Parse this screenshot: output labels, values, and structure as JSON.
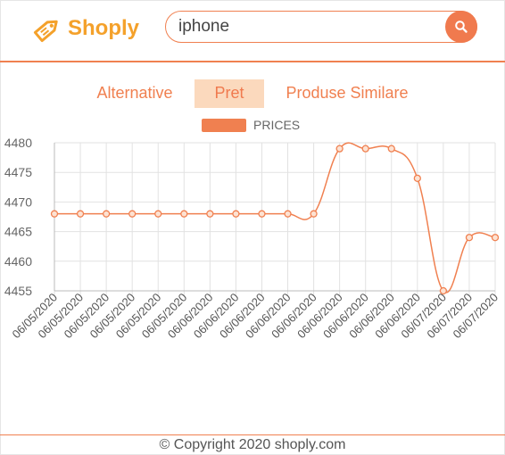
{
  "app": {
    "brand": "Shoply",
    "brand_color": "#f4a12b",
    "accent_color": "#f08050"
  },
  "search": {
    "value": "iphone",
    "button_icon": "search-icon"
  },
  "tabs": [
    {
      "label": "Alternative",
      "active": false
    },
    {
      "label": "Pret",
      "active": true
    },
    {
      "label": "Produse Similare",
      "active": false
    }
  ],
  "chart_data": {
    "type": "line",
    "title": "",
    "legend": [
      "PRICES"
    ],
    "legend_position": "top",
    "grid": true,
    "ylim": [
      4455,
      4480
    ],
    "yticks": [
      4455,
      4460,
      4465,
      4470,
      4475,
      4480
    ],
    "categories": [
      "06/05/2020",
      "06/05/2020",
      "06/05/2020",
      "06/05/2020",
      "06/05/2020",
      "06/05/2020",
      "06/06/2020",
      "06/06/2020",
      "06/06/2020",
      "06/06/2020",
      "06/06/2020",
      "06/06/2020",
      "06/06/2020",
      "06/06/2020",
      "06/06/2020",
      "06/07/2020",
      "06/07/2020",
      "06/07/2020"
    ],
    "series": [
      {
        "name": "PRICES",
        "color": "#f08050",
        "values": [
          4468,
          4468,
          4468,
          4468,
          4468,
          4468,
          4468,
          4468,
          4468,
          4468,
          4468,
          4479,
          4479,
          4479,
          4474,
          4455,
          4464,
          4464
        ]
      }
    ]
  },
  "footer": {
    "text": "© Copyright 2020 shoply.com"
  }
}
